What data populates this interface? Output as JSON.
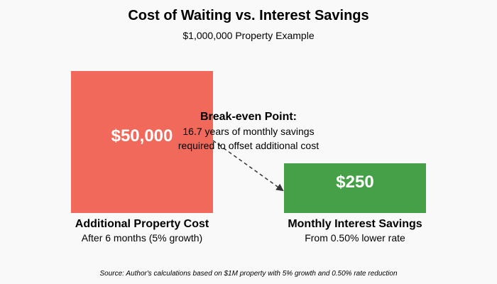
{
  "header": {
    "title": "Cost of Waiting vs. Interest Savings",
    "subtitle": "$1,000,000 Property Example"
  },
  "left_block": {
    "value": "$50,000",
    "label": "Additional Property Cost",
    "sublabel": "After 6 months (5% growth)",
    "color": "#f0695a"
  },
  "right_block": {
    "value": "$250",
    "label": "Monthly Interest Savings",
    "sublabel": "From 0.50% lower rate",
    "color": "#46a047"
  },
  "break_even": {
    "title": "Break-even Point:",
    "line1": "16.7 years of monthly savings",
    "line2": "required to offset additional cost"
  },
  "source": "Source: Author's calculations based on $1M property with 5% growth and 0.50% rate reduction",
  "colors": {
    "background": "#f9f9f9",
    "arrow": "#333333"
  }
}
